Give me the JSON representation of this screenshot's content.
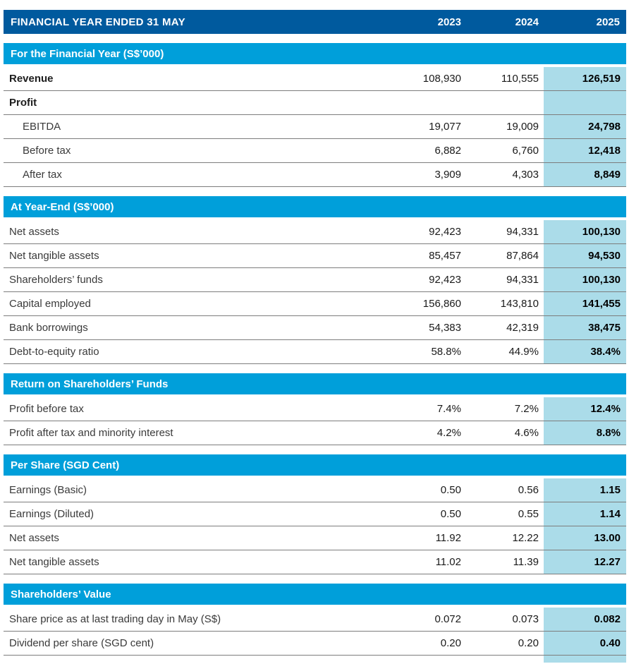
{
  "header": {
    "title": "FINANCIAL YEAR ENDED 31 MAY",
    "years": [
      "2023",
      "2024",
      "2025"
    ]
  },
  "colors": {
    "header_bg": "#005a9e",
    "section_bg": "#009fda",
    "highlight_bg": "#abdce9",
    "row_border": "#7d7d7d"
  },
  "sections": [
    {
      "title": "For the Financial Year (S$’000)",
      "rows": [
        {
          "label": "Revenue",
          "bold": true,
          "indent": false,
          "values": [
            "108,930",
            "110,555",
            "126,519"
          ]
        },
        {
          "label": "Profit",
          "bold": true,
          "indent": false,
          "values": [
            "",
            "",
            ""
          ]
        },
        {
          "label": "EBITDA",
          "bold": false,
          "indent": true,
          "values": [
            "19,077",
            "19,009",
            "24,798"
          ]
        },
        {
          "label": "Before tax",
          "bold": false,
          "indent": true,
          "values": [
            "6,882",
            "6,760",
            "12,418"
          ]
        },
        {
          "label": "After tax",
          "bold": false,
          "indent": true,
          "values": [
            "3,909",
            "4,303",
            "8,849"
          ]
        }
      ]
    },
    {
      "title": "At Year-End (S$’000)",
      "rows": [
        {
          "label": "Net assets",
          "bold": false,
          "indent": false,
          "values": [
            "92,423",
            "94,331",
            "100,130"
          ]
        },
        {
          "label": "Net tangible assets",
          "bold": false,
          "indent": false,
          "values": [
            "85,457",
            "87,864",
            "94,530"
          ]
        },
        {
          "label": "Shareholders’ funds",
          "bold": false,
          "indent": false,
          "values": [
            "92,423",
            "94,331",
            "100,130"
          ]
        },
        {
          "label": "Capital employed",
          "bold": false,
          "indent": false,
          "values": [
            "156,860",
            "143,810",
            "141,455"
          ]
        },
        {
          "label": "Bank borrowings",
          "bold": false,
          "indent": false,
          "values": [
            "54,383",
            "42,319",
            "38,475"
          ]
        },
        {
          "label": "Debt-to-equity ratio",
          "bold": false,
          "indent": false,
          "values": [
            "58.8%",
            "44.9%",
            "38.4%"
          ]
        }
      ]
    },
    {
      "title": "Return on Shareholders’ Funds",
      "rows": [
        {
          "label": "Profit before tax",
          "bold": false,
          "indent": false,
          "values": [
            "7.4%",
            "7.2%",
            "12.4%"
          ]
        },
        {
          "label": "Profit after tax and minority interest",
          "bold": false,
          "indent": false,
          "values": [
            "4.2%",
            "4.6%",
            "8.8%"
          ]
        }
      ]
    },
    {
      "title": "Per Share (SGD Cent)",
      "rows": [
        {
          "label": "Earnings (Basic)",
          "bold": false,
          "indent": false,
          "values": [
            "0.50",
            "0.56",
            "1.15"
          ]
        },
        {
          "label": "Earnings (Diluted)",
          "bold": false,
          "indent": false,
          "values": [
            "0.50",
            "0.55",
            "1.14"
          ]
        },
        {
          "label": "Net assets",
          "bold": false,
          "indent": false,
          "values": [
            "11.92",
            "12.22",
            "13.00"
          ]
        },
        {
          "label": "Net tangible assets",
          "bold": false,
          "indent": false,
          "values": [
            "11.02",
            "11.39",
            "12.27"
          ]
        }
      ]
    },
    {
      "title": "Shareholders’ Value",
      "rows": [
        {
          "label": "Share price as at last trading day in May (S$)",
          "bold": false,
          "indent": false,
          "values": [
            "0.072",
            "0.073",
            "0.082"
          ]
        },
        {
          "label": "Dividend per share (SGD cent)",
          "bold": false,
          "indent": false,
          "values": [
            "0.20",
            "0.20",
            "0.40"
          ]
        }
      ]
    }
  ]
}
